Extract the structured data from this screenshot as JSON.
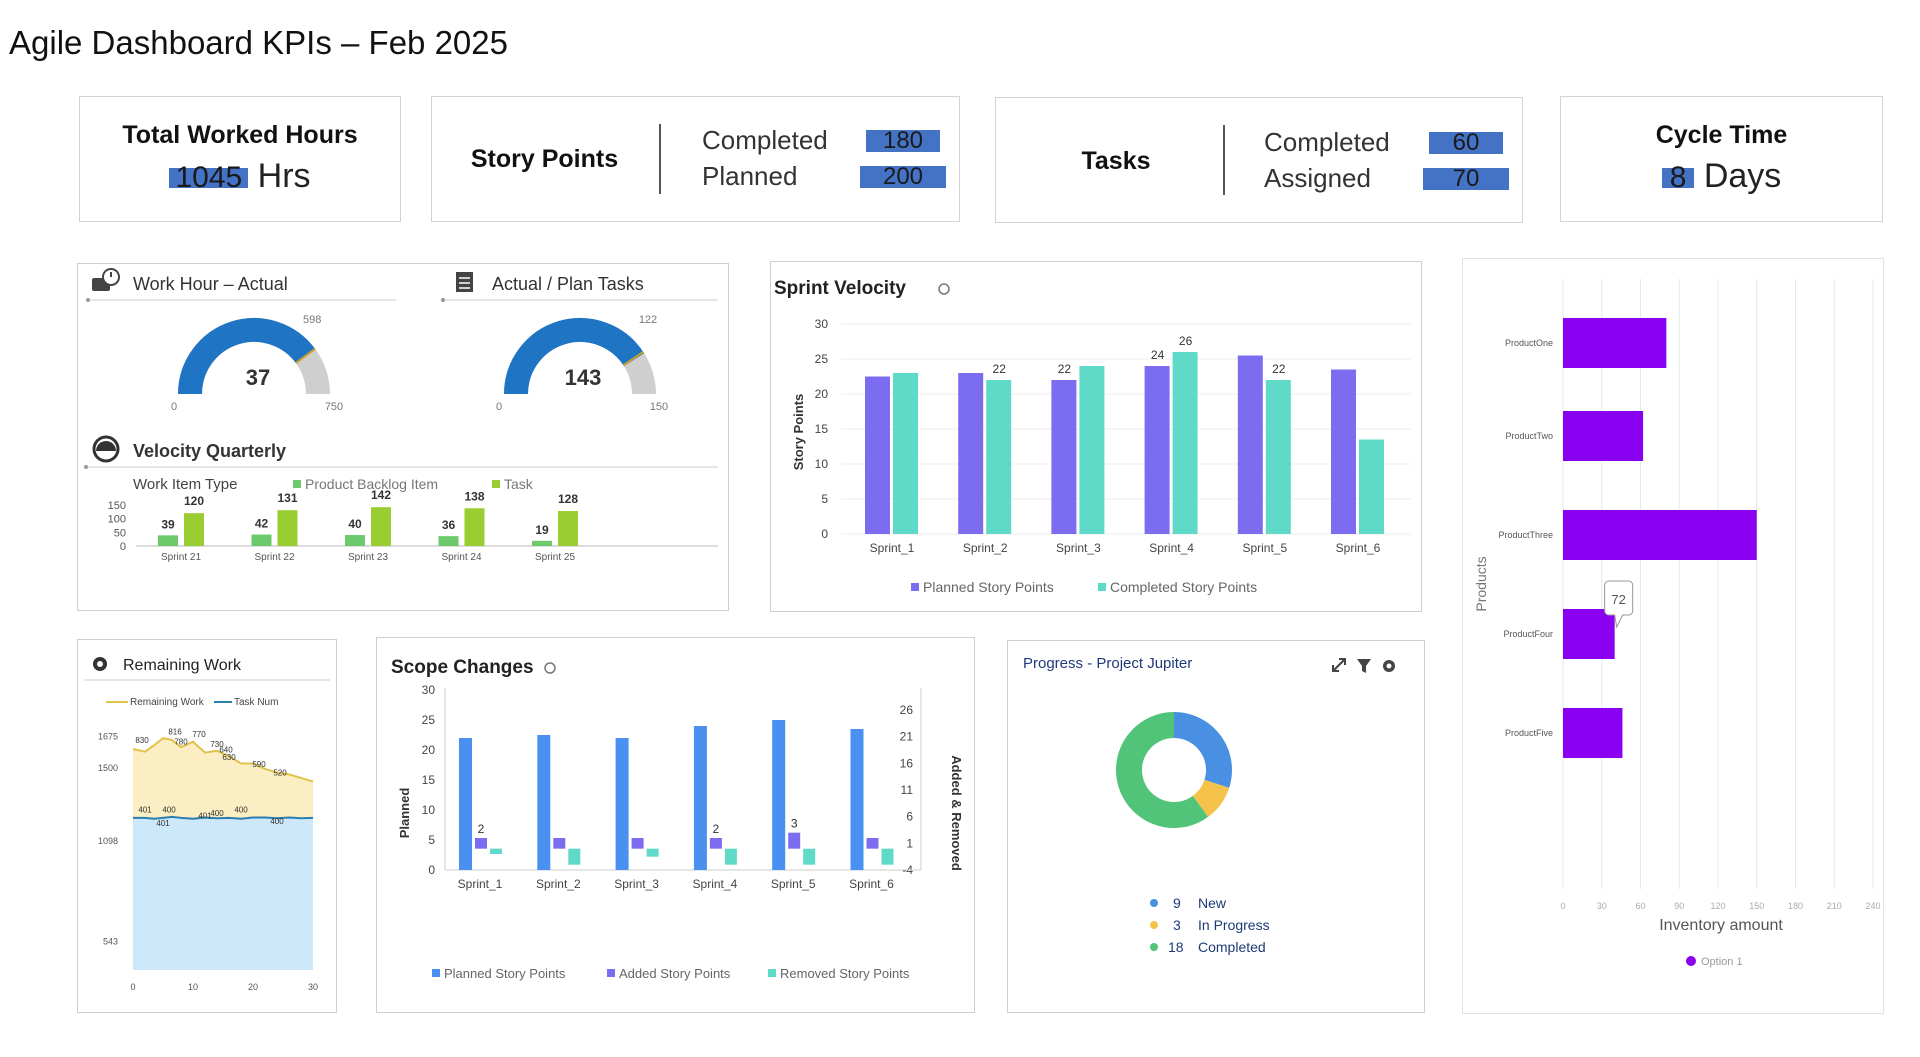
{
  "page": {
    "title": "Agile Dashboard KPIs – Feb 2025"
  },
  "kpis": {
    "hours": {
      "title": "Total Worked Hours",
      "value": "1045",
      "unit": "Hrs"
    },
    "story_points": {
      "title": "Story Points",
      "completed_label": "Completed",
      "completed": "180",
      "planned_label": "Planned",
      "planned": "200"
    },
    "tasks": {
      "title": "Tasks",
      "completed_label": "Completed",
      "completed": "60",
      "assigned_label": "Assigned",
      "assigned": "70"
    },
    "cycle": {
      "title": "Cycle Time",
      "value": "8",
      "unit": "Days"
    }
  },
  "colors": {
    "blue": "#1f74c4",
    "gray": "#cfcfcf",
    "purple": "#7b6cf0",
    "teal": "#5fdac8",
    "green_light": "#6cc96c",
    "lime": "#9acd32",
    "bright_blue": "#4a90f0",
    "violet": "#8a00f0",
    "accent": "#4472c4"
  },
  "panels": {
    "work_hour": {
      "title": "Work Hour – Actual"
    },
    "actual_plan": {
      "title": "Actual / Plan Tasks"
    },
    "velocity_q": {
      "title": "Velocity Quarterly",
      "legend_title": "Work Item Type",
      "legend_a": "Product Backlog Item",
      "legend_b": "Task"
    },
    "sprint_velocity": {
      "title": "Sprint Velocity",
      "ylabel": "Story Points",
      "legend_a": "Planned Story Points",
      "legend_b": "Completed Story Points"
    },
    "remaining": {
      "title": "Remaining Work",
      "legend_a": "Remaining Work",
      "legend_b": "Task Num"
    },
    "scope": {
      "title": "Scope Changes",
      "ylabel_left": "Planned",
      "ylabel_right": "Added & Removed",
      "legend_a": "Planned Story Points",
      "legend_b": "Added Story Points",
      "legend_c": "Removed Story Points"
    },
    "progress": {
      "title": "Progress - Project Jupiter"
    },
    "inventory": {
      "xlabel": "Inventory amount",
      "ylabel": "Products",
      "legend": "Option 1",
      "callout": "72"
    }
  },
  "chart_data": [
    {
      "id": "gauge_hours",
      "type": "gauge",
      "value": 37,
      "min": 0,
      "max": 750,
      "fill_fraction": 0.8,
      "marker": 598,
      "labels": {
        "value": "37",
        "min": "0",
        "max": "750",
        "marker": "598"
      }
    },
    {
      "id": "gauge_tasks",
      "type": "gauge",
      "value": 143,
      "min": 0,
      "max": 150,
      "fill_fraction": 0.82,
      "marker": 122,
      "labels": {
        "value": "143",
        "min": "0",
        "max": "150",
        "marker": "122"
      }
    },
    {
      "id": "velocity_quarterly",
      "type": "bar",
      "title": "Velocity Quarterly",
      "categories": [
        "Sprint 21",
        "Sprint 22",
        "Sprint 23",
        "Sprint 24",
        "Sprint 25"
      ],
      "series": [
        {
          "name": "Product Backlog Item",
          "values": [
            39,
            42,
            40,
            36,
            19
          ]
        },
        {
          "name": "Task",
          "values": [
            120,
            131,
            142,
            138,
            128
          ]
        }
      ],
      "yticks": [
        "0",
        "50",
        "100",
        "150"
      ],
      "ylim": [
        0,
        150
      ]
    },
    {
      "id": "sprint_velocity",
      "type": "bar",
      "title": "Sprint Velocity",
      "categories": [
        "Sprint_1",
        "Sprint_2",
        "Sprint_3",
        "Sprint_4",
        "Sprint_5",
        "Sprint_6"
      ],
      "series": [
        {
          "name": "Planned Story Points",
          "values": [
            22.5,
            23,
            22,
            24,
            25.5,
            23.5
          ]
        },
        {
          "name": "Completed Story Points",
          "values": [
            23,
            22,
            24,
            26,
            22,
            13.5
          ]
        }
      ],
      "data_labels": [
        {
          "index": 1,
          "series": 1,
          "text": "22"
        },
        {
          "index": 2,
          "series": 0,
          "text": "22"
        },
        {
          "index": 3,
          "series": 0,
          "text": "24"
        },
        {
          "index": 3,
          "series": 1,
          "text": "26"
        },
        {
          "index": 4,
          "series": 1,
          "text": "22"
        }
      ],
      "ylim": [
        0,
        30
      ],
      "yticks": [
        "0",
        "5",
        "10",
        "15",
        "20",
        "25",
        "30"
      ],
      "ylabel": "Story Points"
    },
    {
      "id": "remaining_work",
      "type": "area",
      "x": [
        0,
        2,
        3.5,
        5,
        6.5,
        8,
        10,
        12,
        14,
        16,
        18,
        20,
        22,
        24,
        26,
        28,
        30
      ],
      "series": [
        {
          "name": "Remaining Work",
          "values": [
            1600,
            1585,
            1620,
            1660,
            1650,
            1610,
            1640,
            1580,
            1590,
            1560,
            1520,
            1520,
            1490,
            1470,
            1460,
            1440,
            1420
          ]
        },
        {
          "name": "Task Num",
          "values": [
            1220,
            1220,
            1215,
            1220,
            1225,
            1220,
            1215,
            1222,
            1218,
            1220,
            1215,
            1222,
            1222,
            1218,
            1222,
            1218,
            1220
          ]
        }
      ],
      "point_labels": [
        "830",
        "816",
        "780",
        "770",
        "730",
        "640",
        "630",
        "590",
        "520",
        "401",
        "400",
        "401",
        "400",
        "400",
        "401",
        "400"
      ],
      "xticks": [
        "0",
        "10",
        "20",
        "30"
      ],
      "yticks": [
        "543",
        "1098",
        "1500",
        "1675"
      ],
      "ylim": [
        380,
        1760
      ]
    },
    {
      "id": "scope_changes",
      "type": "bar",
      "title": "Scope Changes",
      "categories": [
        "Sprint_1",
        "Sprint_2",
        "Sprint_3",
        "Sprint_4",
        "Sprint_5",
        "Sprint_6"
      ],
      "series": [
        {
          "name": "Planned Story Points",
          "axis": "left",
          "values": [
            22,
            22.5,
            22,
            24,
            25,
            23.5
          ]
        },
        {
          "name": "Added Story Points",
          "axis": "right",
          "values": [
            2,
            2,
            2,
            2,
            3,
            2
          ]
        },
        {
          "name": "Removed Story Points",
          "axis": "right",
          "values": [
            -1,
            -3,
            -1.5,
            -3,
            -3,
            -3
          ]
        }
      ],
      "data_labels": [
        {
          "index": 0,
          "series": 1,
          "text": "2"
        },
        {
          "index": 3,
          "series": 1,
          "text": "2"
        },
        {
          "index": 4,
          "series": 1,
          "text": "3"
        }
      ],
      "ylim_left": [
        0,
        30
      ],
      "ylim_right": [
        -4,
        26
      ],
      "yticks_left": [
        "0",
        "5",
        "10",
        "15",
        "20",
        "25",
        "30"
      ],
      "yticks_right": [
        "-4",
        "1",
        "6",
        "11",
        "16",
        "21",
        "26"
      ]
    },
    {
      "id": "progress_donut",
      "type": "pie",
      "slices": [
        {
          "label": "New",
          "value": 9,
          "count": "9",
          "color": "#4a90e2"
        },
        {
          "label": "In Progress",
          "value": 3,
          "count": "3",
          "color": "#f5c24a"
        },
        {
          "label": "Completed",
          "value": 18,
          "count": "18",
          "color": "#52c47a"
        }
      ]
    },
    {
      "id": "inventory",
      "type": "bar",
      "orientation": "horizontal",
      "categories": [
        "ProductOne",
        "ProductTwo",
        "ProductThree",
        "ProductFour",
        "ProductFive"
      ],
      "values": [
        80,
        62,
        150,
        40,
        46
      ],
      "xlim": [
        0,
        240
      ],
      "xticks": [
        "0",
        "30",
        "60",
        "90",
        "120",
        "150",
        "180",
        "210",
        "240"
      ],
      "xlabel": "Inventory amount",
      "ylabel": "Products"
    }
  ]
}
